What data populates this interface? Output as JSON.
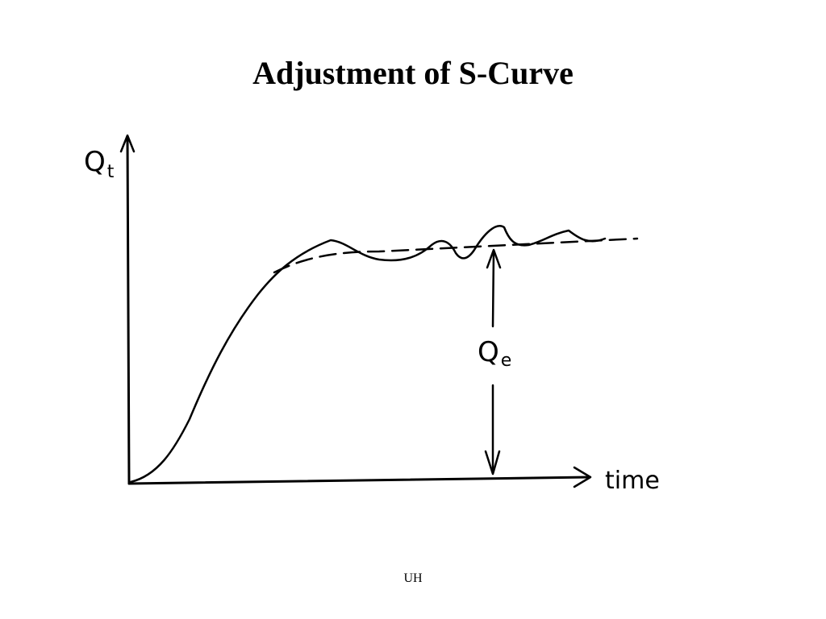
{
  "slide": {
    "title": "Adjustment of S-Curve",
    "footer": "UH"
  },
  "diagram": {
    "y_axis_label_main": "Q",
    "y_axis_label_sub": "t",
    "x_axis_label": "time",
    "equilibrium_label_main": "Q",
    "equilibrium_label_sub": "e"
  }
}
